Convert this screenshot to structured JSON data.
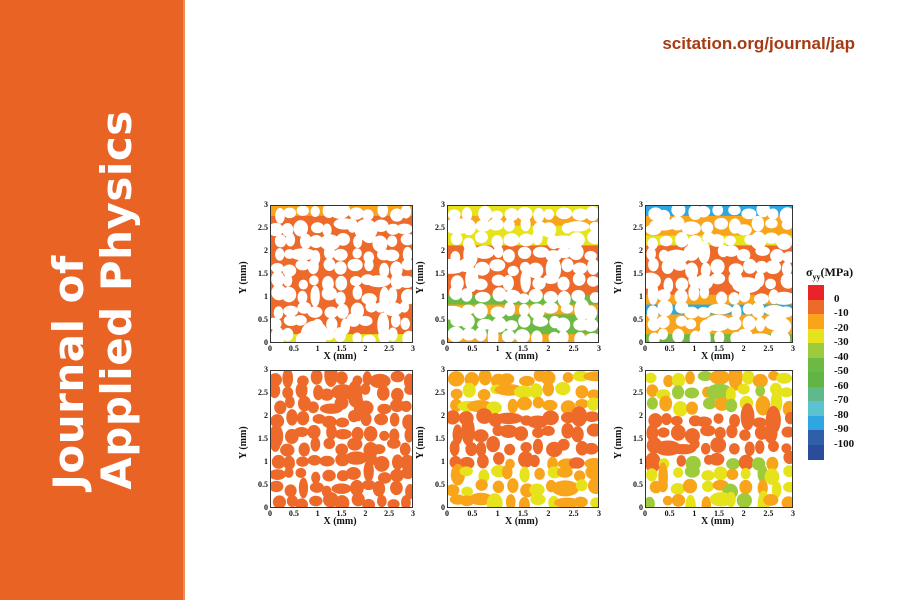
{
  "sidebar": {
    "title_line1": "Journal of",
    "title_line2": "Applied Physics",
    "background": "#e96324"
  },
  "header": {
    "url": "scitation.org/journal/jap",
    "url_color": "#a63a13"
  },
  "figure": {
    "xlabel": "X (mm)",
    "ylabel": "Y (mm)",
    "xticks": [
      "0",
      "0.5",
      "1",
      "1.5",
      "2",
      "2.5",
      "3"
    ],
    "yticks": [
      "0",
      "0.5",
      "1",
      "1.5",
      "2",
      "2.5",
      "3"
    ],
    "panels": [
      {
        "row": 0,
        "col": 0,
        "description": "network phase stress map, mostly 0 MPa (red-orange) with yellow/green at top and bottom edges"
      },
      {
        "row": 0,
        "col": 1,
        "description": "network phase stress map, red-orange core band y 1-2 mm, yellow/green near edges"
      },
      {
        "row": 0,
        "col": 2,
        "description": "network phase stress map, red band y 1-2 mm, predominantly green/yellow elsewhere"
      },
      {
        "row": 1,
        "col": 0,
        "description": "particle phase stress map, nearly all red-orange"
      },
      {
        "row": 1,
        "col": 1,
        "description": "particle phase stress map, orange core, yellow-orange particles near top and bottom"
      },
      {
        "row": 1,
        "col": 2,
        "description": "particle phase stress map, orange core band, yellow/green particles near top and bottom"
      }
    ]
  },
  "colorbar": {
    "title": "σ",
    "title_sub": "yy",
    "title_unit": "(MPa)",
    "labels": [
      "0",
      "-10",
      "-20",
      "-30",
      "-40",
      "-50",
      "-60",
      "-70",
      "-80",
      "-90",
      "-100"
    ],
    "colors": [
      "#e8242a",
      "#ee6a2a",
      "#f9a51b",
      "#e6e31c",
      "#9dcb3b",
      "#6cba44",
      "#62b545",
      "#5fb98b",
      "#5dc2cf",
      "#2ea7e0",
      "#2f5fa8",
      "#2b4b9b"
    ]
  },
  "chart_data": {
    "type": "heatmap",
    "title": "",
    "xlabel": "X (mm)",
    "ylabel": "Y (mm)",
    "xlim": [
      0,
      3
    ],
    "ylim": [
      0,
      3
    ],
    "grid": [
      2,
      3
    ],
    "colorbar": {
      "label": "σyy (MPa)",
      "range": [
        -100,
        0
      ],
      "ticks": [
        0,
        -10,
        -20,
        -30,
        -40,
        -50,
        -60,
        -70,
        -80,
        -90,
        -100
      ]
    },
    "panels": [
      {
        "row": 1,
        "col": 1,
        "phase": "network",
        "dominant_stress_MPa": 0,
        "edge_stress_MPa": [
          -20,
          -40
        ]
      },
      {
        "row": 1,
        "col": 2,
        "phase": "network",
        "core_band_y_mm": [
          1,
          2
        ],
        "core_stress_MPa": 0,
        "edge_stress_MPa": [
          -20,
          -50
        ]
      },
      {
        "row": 1,
        "col": 3,
        "phase": "network",
        "core_band_y_mm": [
          1,
          2
        ],
        "core_stress_MPa": 0,
        "edge_stress_MPa": [
          -30,
          -60
        ]
      },
      {
        "row": 2,
        "col": 1,
        "phase": "particle",
        "dominant_stress_MPa": 0
      },
      {
        "row": 2,
        "col": 2,
        "phase": "particle",
        "core_stress_MPa": 0,
        "edge_stress_MPa": [
          -10,
          -20
        ]
      },
      {
        "row": 2,
        "col": 3,
        "phase": "particle",
        "core_stress_MPa": 0,
        "edge_stress_MPa": [
          -20,
          -40
        ]
      }
    ]
  }
}
